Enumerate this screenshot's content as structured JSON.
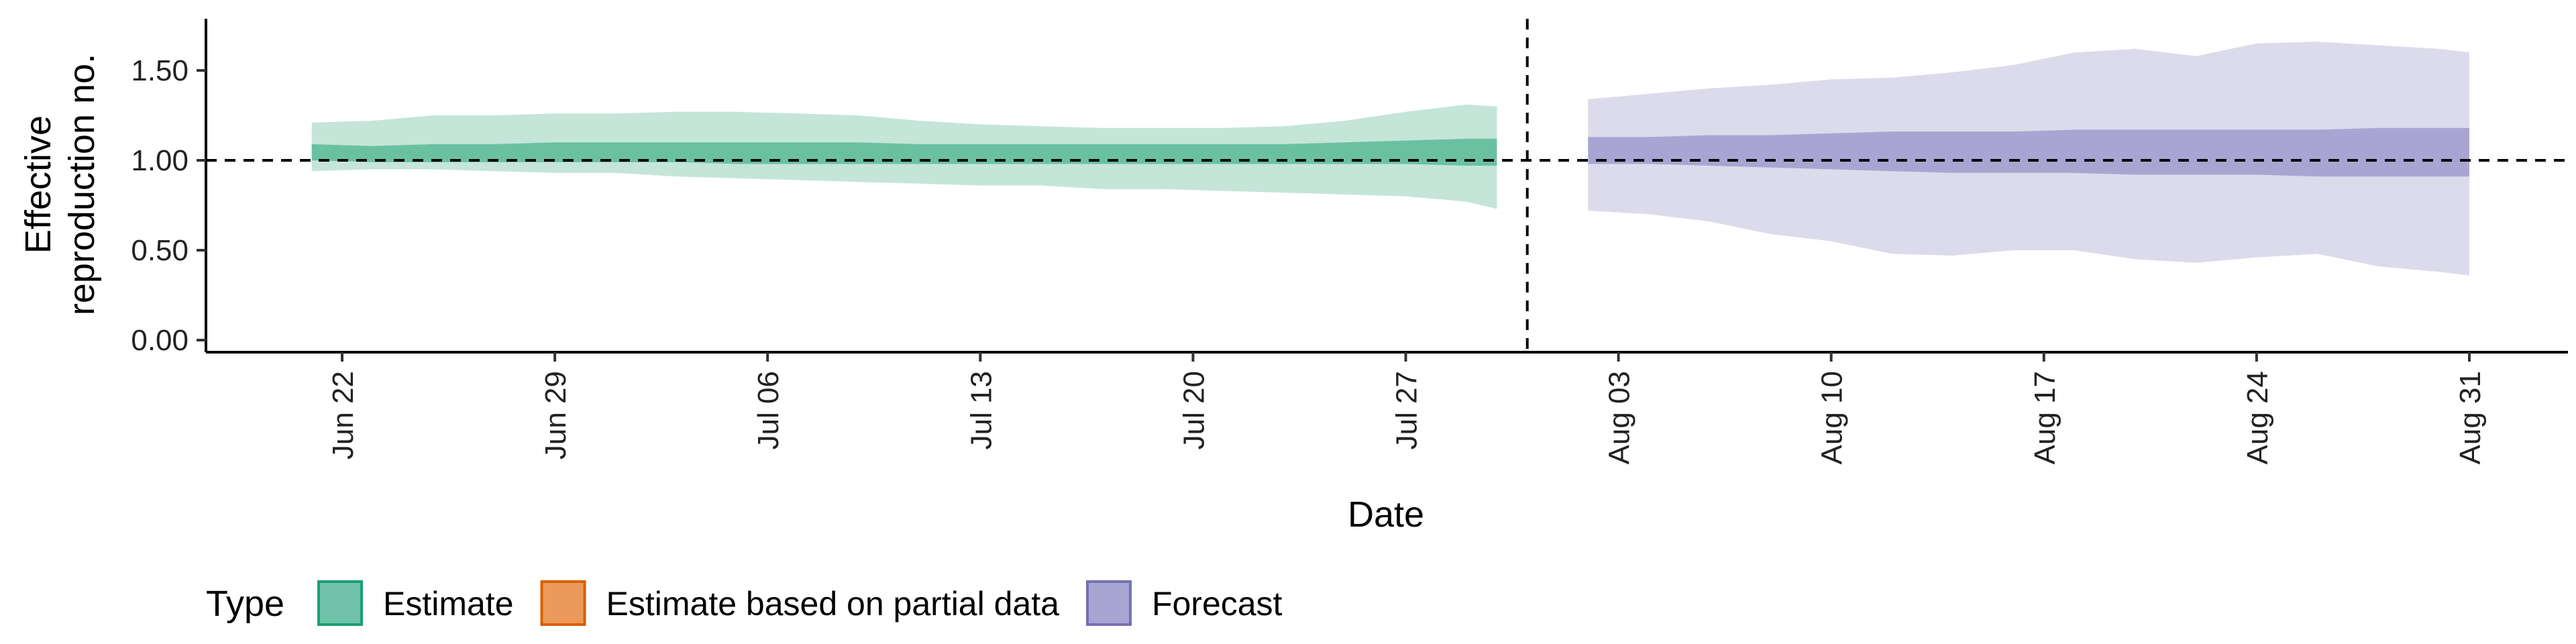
{
  "chart_data": {
    "type": "area",
    "title": "",
    "xlabel": "Date",
    "ylabel": [
      "Effective",
      "reproduction no."
    ],
    "ylim": [
      0,
      1.75
    ],
    "yticks": [
      "0.00",
      "0.50",
      "1.00",
      "1.50"
    ],
    "xlim": [
      "2020-06-15",
      "2020-09-05"
    ],
    "xticks": [
      {
        "date": "2020-06-22",
        "label": "Jun 22"
      },
      {
        "date": "2020-06-29",
        "label": "Jun 29"
      },
      {
        "date": "2020-07-06",
        "label": "Jul 06"
      },
      {
        "date": "2020-07-13",
        "label": "Jul 13"
      },
      {
        "date": "2020-07-20",
        "label": "Jul 20"
      },
      {
        "date": "2020-07-27",
        "label": "Jul 27"
      },
      {
        "date": "2020-08-03",
        "label": "Aug 03"
      },
      {
        "date": "2020-08-10",
        "label": "Aug 10"
      },
      {
        "date": "2020-08-17",
        "label": "Aug 17"
      },
      {
        "date": "2020-08-24",
        "label": "Aug 24"
      },
      {
        "date": "2020-08-31",
        "label": "Aug 31"
      }
    ],
    "hline": 1.0,
    "vline": "2020-07-31",
    "grid": false,
    "legend": {
      "title": "Type",
      "position": "bottom",
      "entries": [
        {
          "label": "Estimate",
          "fill": "#70c3a8",
          "stroke": "#1b9e77"
        },
        {
          "label": "Estimate based on partial data",
          "fill": "#eb9a5a",
          "stroke": "#d95f02"
        },
        {
          "label": "Forecast",
          "fill": "#a9a5d3",
          "stroke": "#7570b3"
        }
      ]
    },
    "series": [
      {
        "name": "Estimate",
        "outer_fill": "#c5e5d9",
        "inner_fill": "#6ac1a2",
        "x": [
          "2020-06-21",
          "2020-06-23",
          "2020-06-25",
          "2020-06-27",
          "2020-06-29",
          "2020-07-01",
          "2020-07-03",
          "2020-07-05",
          "2020-07-07",
          "2020-07-09",
          "2020-07-11",
          "2020-07-13",
          "2020-07-15",
          "2020-07-17",
          "2020-07-19",
          "2020-07-21",
          "2020-07-23",
          "2020-07-25",
          "2020-07-27",
          "2020-07-29",
          "2020-07-30"
        ],
        "outer_upper": [
          1.21,
          1.22,
          1.25,
          1.25,
          1.26,
          1.26,
          1.27,
          1.27,
          1.26,
          1.25,
          1.22,
          1.2,
          1.19,
          1.18,
          1.18,
          1.18,
          1.19,
          1.22,
          1.27,
          1.31,
          1.3
        ],
        "outer_lower": [
          0.94,
          0.95,
          0.95,
          0.94,
          0.93,
          0.93,
          0.91,
          0.9,
          0.89,
          0.88,
          0.87,
          0.86,
          0.86,
          0.84,
          0.84,
          0.83,
          0.82,
          0.81,
          0.8,
          0.77,
          0.73
        ],
        "inner_upper": [
          1.09,
          1.08,
          1.09,
          1.09,
          1.1,
          1.1,
          1.1,
          1.1,
          1.1,
          1.1,
          1.09,
          1.09,
          1.09,
          1.09,
          1.09,
          1.09,
          1.09,
          1.1,
          1.11,
          1.12,
          1.12
        ],
        "inner_lower": [
          1.0,
          0.99,
          0.99,
          0.99,
          0.99,
          0.99,
          0.99,
          0.98,
          0.98,
          0.98,
          0.98,
          0.98,
          0.98,
          0.98,
          0.98,
          0.98,
          0.98,
          0.98,
          0.98,
          0.97,
          0.97
        ]
      },
      {
        "name": "Forecast",
        "outer_fill": "#dcdbeb",
        "inner_fill": "#a9a5d3",
        "x": [
          "2020-08-02",
          "2020-08-04",
          "2020-08-06",
          "2020-08-08",
          "2020-08-10",
          "2020-08-12",
          "2020-08-14",
          "2020-08-16",
          "2020-08-18",
          "2020-08-20",
          "2020-08-22",
          "2020-08-24",
          "2020-08-26",
          "2020-08-28",
          "2020-08-30",
          "2020-08-31"
        ],
        "outer_upper": [
          1.34,
          1.37,
          1.4,
          1.42,
          1.45,
          1.46,
          1.49,
          1.53,
          1.6,
          1.62,
          1.58,
          1.65,
          1.66,
          1.64,
          1.62,
          1.6
        ],
        "outer_lower": [
          0.72,
          0.7,
          0.66,
          0.59,
          0.55,
          0.48,
          0.47,
          0.5,
          0.5,
          0.45,
          0.43,
          0.46,
          0.48,
          0.41,
          0.38,
          0.36
        ],
        "inner_upper": [
          1.13,
          1.13,
          1.14,
          1.14,
          1.15,
          1.16,
          1.16,
          1.16,
          1.17,
          1.17,
          1.17,
          1.17,
          1.17,
          1.18,
          1.18,
          1.18
        ],
        "inner_lower": [
          0.98,
          0.98,
          0.97,
          0.96,
          0.95,
          0.94,
          0.93,
          0.93,
          0.93,
          0.92,
          0.92,
          0.92,
          0.91,
          0.91,
          0.91,
          0.91
        ]
      }
    ]
  }
}
